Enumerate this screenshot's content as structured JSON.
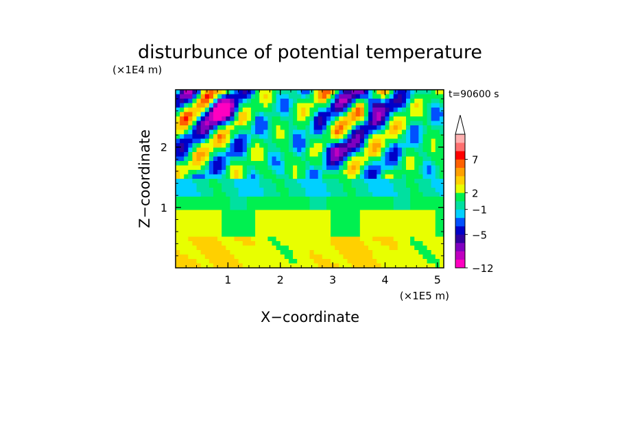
{
  "chart_data": {
    "type": "heatmap",
    "title": "disturbunce of potential temperature",
    "time_label": "t=90600 s",
    "xlabel": "X−coordinate",
    "ylabel": "Z−coordinate",
    "x_unit": "(×1E5 m)",
    "y_unit": "(×1E4 m)",
    "xlim": [
      0,
      5.12
    ],
    "ylim": [
      0,
      2.95
    ],
    "x_ticks": [
      {
        "value": 1,
        "label": "1"
      },
      {
        "value": 2,
        "label": "2"
      },
      {
        "value": 3,
        "label": "3"
      },
      {
        "value": 4,
        "label": "4"
      },
      {
        "value": 5,
        "label": "5"
      }
    ],
    "y_ticks": [
      {
        "value": 1,
        "label": "1"
      },
      {
        "value": 2,
        "label": "2"
      }
    ],
    "colorbar": {
      "colors": [
        "#ff00c0",
        "#c000c0",
        "#8000c0",
        "#3000a0",
        "#0000c8",
        "#0050ff",
        "#00d0ff",
        "#00e0a0",
        "#00f050",
        "#e8ff00",
        "#ffd000",
        "#ffa000",
        "#ff6000",
        "#ff0000",
        "#ff7070",
        "#ffb0b0"
      ],
      "labels": [
        {
          "index": 0,
          "text": "−12"
        },
        {
          "index": 4,
          "text": "−5"
        },
        {
          "index": 7,
          "text": "−1"
        },
        {
          "index": 9,
          "text": "2"
        },
        {
          "index": 13,
          "text": "7"
        }
      ],
      "extend_top": true
    },
    "field_description": "disturbance field: near zero (green/yellow/orange) in lower layer 0-1.4, alternating warm/cold wave crests above 1.5, strong cold (blue/purple) cores near top around x=0.3-1.2 and x=3.5-4.5"
  }
}
